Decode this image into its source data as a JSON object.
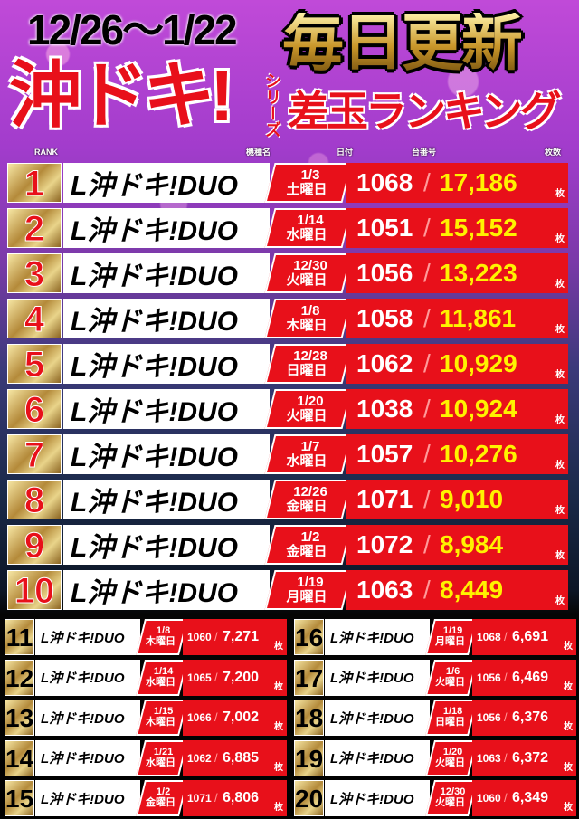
{
  "header": {
    "period": "12/26〜1/22",
    "series_title": "沖ドキ!",
    "series_suffix": "シリーズ",
    "daily_update": "毎日更新",
    "ranking_title": "差玉ランキング"
  },
  "columns": {
    "rank": "RANK",
    "machine": "機種名",
    "date": "日付",
    "unit_no": "台番号",
    "count": "枚数"
  },
  "unit_label": "枚",
  "colors": {
    "accent_red": "#e8101a",
    "top_count_yellow": "#fff200",
    "gold": "#c8962a"
  },
  "rankings": [
    {
      "rank": "1",
      "machine": "L沖ドキ!DUO",
      "date": "1/3",
      "weekday": "土曜日",
      "unit_no": "1068",
      "count": "17,186"
    },
    {
      "rank": "2",
      "machine": "L沖ドキ!DUO",
      "date": "1/14",
      "weekday": "水曜日",
      "unit_no": "1051",
      "count": "15,152"
    },
    {
      "rank": "3",
      "machine": "L沖ドキ!DUO",
      "date": "12/30",
      "weekday": "火曜日",
      "unit_no": "1056",
      "count": "13,223"
    },
    {
      "rank": "4",
      "machine": "L沖ドキ!DUO",
      "date": "1/8",
      "weekday": "木曜日",
      "unit_no": "1058",
      "count": "11,861"
    },
    {
      "rank": "5",
      "machine": "L沖ドキ!DUO",
      "date": "12/28",
      "weekday": "日曜日",
      "unit_no": "1062",
      "count": "10,929"
    },
    {
      "rank": "6",
      "machine": "L沖ドキ!DUO",
      "date": "1/20",
      "weekday": "火曜日",
      "unit_no": "1038",
      "count": "10,924"
    },
    {
      "rank": "7",
      "machine": "L沖ドキ!DUO",
      "date": "1/7",
      "weekday": "水曜日",
      "unit_no": "1057",
      "count": "10,276"
    },
    {
      "rank": "8",
      "machine": "L沖ドキ!DUO",
      "date": "12/26",
      "weekday": "金曜日",
      "unit_no": "1071",
      "count": "9,010"
    },
    {
      "rank": "9",
      "machine": "L沖ドキ!DUO",
      "date": "1/2",
      "weekday": "金曜日",
      "unit_no": "1072",
      "count": "8,984"
    },
    {
      "rank": "10",
      "machine": "L沖ドキ!DUO",
      "date": "1/19",
      "weekday": "月曜日",
      "unit_no": "1063",
      "count": "8,449"
    },
    {
      "rank": "11",
      "machine": "L沖ドキ!DUO",
      "date": "1/8",
      "weekday": "木曜日",
      "unit_no": "1060",
      "count": "7,271"
    },
    {
      "rank": "12",
      "machine": "L沖ドキ!DUO",
      "date": "1/14",
      "weekday": "水曜日",
      "unit_no": "1065",
      "count": "7,200"
    },
    {
      "rank": "13",
      "machine": "L沖ドキ!DUO",
      "date": "1/15",
      "weekday": "木曜日",
      "unit_no": "1066",
      "count": "7,002"
    },
    {
      "rank": "14",
      "machine": "L沖ドキ!DUO",
      "date": "1/21",
      "weekday": "水曜日",
      "unit_no": "1062",
      "count": "6,885"
    },
    {
      "rank": "15",
      "machine": "L沖ドキ!DUO",
      "date": "1/2",
      "weekday": "金曜日",
      "unit_no": "1071",
      "count": "6,806"
    },
    {
      "rank": "16",
      "machine": "L沖ドキ!DUO",
      "date": "1/19",
      "weekday": "月曜日",
      "unit_no": "1068",
      "count": "6,691"
    },
    {
      "rank": "17",
      "machine": "L沖ドキ!DUO",
      "date": "1/6",
      "weekday": "火曜日",
      "unit_no": "1056",
      "count": "6,469"
    },
    {
      "rank": "18",
      "machine": "L沖ドキ!DUO",
      "date": "1/18",
      "weekday": "日曜日",
      "unit_no": "1056",
      "count": "6,376"
    },
    {
      "rank": "19",
      "machine": "L沖ドキ!DUO",
      "date": "1/20",
      "weekday": "火曜日",
      "unit_no": "1063",
      "count": "6,372"
    },
    {
      "rank": "20",
      "machine": "L沖ドキ!DUO",
      "date": "12/30",
      "weekday": "火曜日",
      "unit_no": "1060",
      "count": "6,349"
    }
  ]
}
